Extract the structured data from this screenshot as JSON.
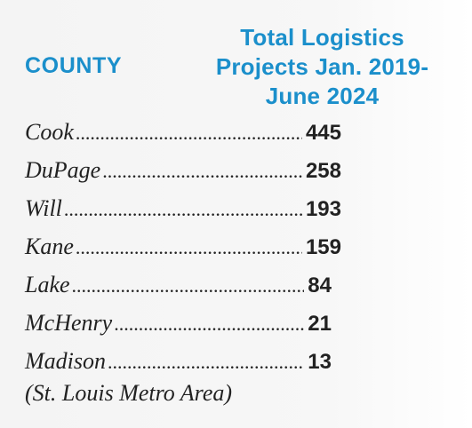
{
  "header": {
    "county_label": "COUNTY",
    "total_label": "Total Logistics Projects Jan. 2019-June 2024"
  },
  "rows": [
    {
      "county": "Cook",
      "value": "445"
    },
    {
      "county": "DuPage",
      "value": "258"
    },
    {
      "county": "Will",
      "value": "193"
    },
    {
      "county": "Kane",
      "value": "159"
    },
    {
      "county": "Lake",
      "value": "84"
    },
    {
      "county": "McHenry",
      "value": "21"
    },
    {
      "county": "Madison",
      "value": "13"
    }
  ],
  "footnote": "(St. Louis Metro Area)",
  "colors": {
    "header": "#1b8fcb",
    "text": "#222222",
    "background": "#f5f5f5"
  }
}
